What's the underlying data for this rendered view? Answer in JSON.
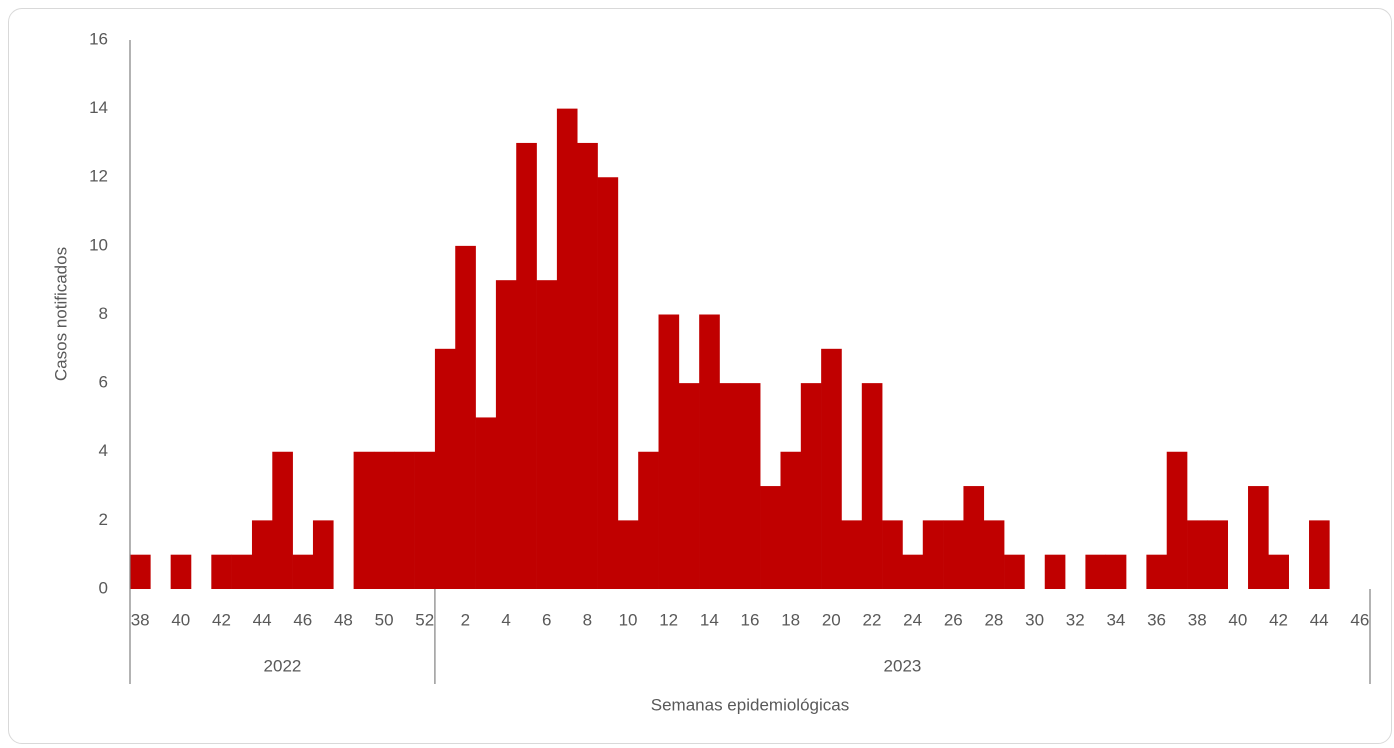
{
  "chart_data": {
    "type": "bar",
    "y_label": "Casos notificados",
    "x_label": "Semanas epidemiológicas",
    "color": "#c00000",
    "ylim": [
      0,
      16
    ],
    "yticks": [
      0,
      2,
      4,
      6,
      8,
      10,
      12,
      14,
      16
    ],
    "groups": [
      {
        "label": "2022",
        "categories": [
          "38",
          null,
          "40",
          null,
          "42",
          null,
          "44",
          null,
          "46",
          null,
          "48",
          null,
          "50",
          null,
          "52"
        ],
        "values": [
          1,
          0,
          1,
          0,
          1,
          1,
          2,
          4,
          1,
          2,
          0,
          4,
          4,
          4,
          4
        ]
      },
      {
        "label": "2023",
        "categories": [
          null,
          "2",
          null,
          "4",
          null,
          "6",
          null,
          "8",
          null,
          "10",
          null,
          "12",
          null,
          "14",
          null,
          "16",
          null,
          "18",
          null,
          "20",
          null,
          "22",
          null,
          "24",
          null,
          "26",
          null,
          "28",
          null,
          "30",
          null,
          "32",
          null,
          "34",
          null,
          "36",
          null,
          "38",
          null,
          "40",
          null,
          "42",
          null,
          "44",
          null,
          "46"
        ],
        "values": [
          7,
          10,
          5,
          9,
          13,
          9,
          14,
          13,
          12,
          2,
          4,
          8,
          6,
          8,
          6,
          6,
          3,
          4,
          6,
          7,
          2,
          6,
          2,
          1,
          2,
          2,
          3,
          2,
          1,
          0,
          1,
          0,
          1,
          1,
          0,
          1,
          4,
          2,
          2,
          0,
          3,
          1,
          0,
          2,
          0,
          0
        ]
      }
    ]
  }
}
